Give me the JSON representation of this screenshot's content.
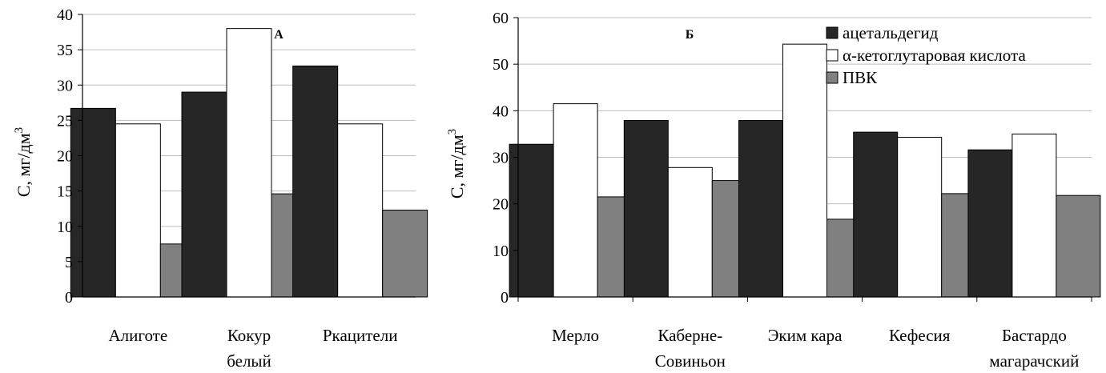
{
  "colors": {
    "dark": "#262626",
    "white": "#ffffff",
    "gray": "#808080",
    "grid": "#bdbdbd",
    "axis": "#000000"
  },
  "chart_data": [
    {
      "type": "bar",
      "panel_label": "А",
      "ylabel": "С, мг/дм",
      "ylabel_sup": "3",
      "ylim": [
        0,
        40
      ],
      "yticks": [
        0,
        5,
        10,
        15,
        20,
        25,
        30,
        35,
        40
      ],
      "grid": true,
      "categories": [
        [
          "Алиготе"
        ],
        [
          "Кокур",
          "белый"
        ],
        [
          "Ркацители"
        ]
      ],
      "series": [
        {
          "color_key": "dark",
          "values": [
            26.7,
            29.0,
            32.7
          ]
        },
        {
          "color_key": "white",
          "values": [
            24.5,
            38.0,
            24.5
          ]
        },
        {
          "color_key": "gray",
          "values": [
            7.5,
            14.6,
            12.3
          ]
        }
      ]
    },
    {
      "type": "bar",
      "panel_label": "Б",
      "ylabel": "С, мг/дм",
      "ylabel_sup": "3",
      "ylim": [
        0,
        60
      ],
      "yticks": [
        0,
        10,
        20,
        30,
        40,
        50,
        60
      ],
      "grid": true,
      "legend_position": "top-right",
      "categories": [
        [
          "Мерло"
        ],
        [
          "Каберне-",
          "Совиньон"
        ],
        [
          "Эким кара"
        ],
        [
          "Кефесия"
        ],
        [
          "Бастардо",
          "магарачский"
        ]
      ],
      "series": [
        {
          "name": "ацетальдегид",
          "color_key": "dark",
          "values": [
            32.8,
            37.9,
            37.9,
            35.4,
            31.6
          ]
        },
        {
          "name": "α-кетоглутаровая кислота",
          "color_key": "white",
          "values": [
            41.5,
            27.8,
            54.3,
            34.3,
            35.0
          ]
        },
        {
          "name": "ПВК",
          "color_key": "gray",
          "values": [
            21.5,
            25.0,
            16.7,
            22.2,
            21.8
          ]
        }
      ]
    }
  ]
}
